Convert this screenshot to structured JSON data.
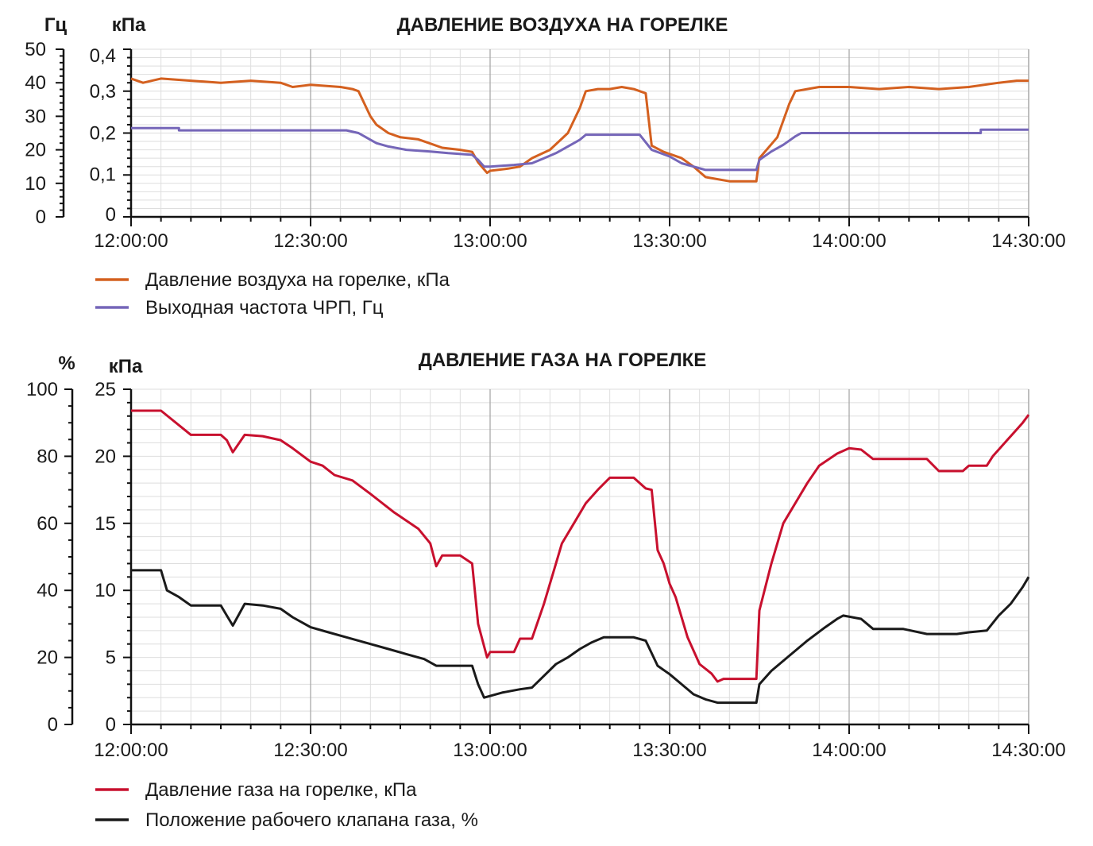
{
  "chart_data": [
    {
      "type": "line",
      "title": "ДАВЛЕНИЕ ВОЗДУХА НА ГОРЕЛКЕ",
      "x_ticks": [
        "12:00:00",
        "12:30:00",
        "13:00:00",
        "13:30:00",
        "14:00:00",
        "14:30:00"
      ],
      "xlim": [
        "12:00:00",
        "14:30:00"
      ],
      "grid": true,
      "legend_position": "bottom-left",
      "axes": [
        {
          "id": "left_outer",
          "unit": "Гц",
          "ylim": [
            0,
            50
          ],
          "ticks": [
            "0",
            "10",
            "20",
            "30",
            "40",
            "50"
          ]
        },
        {
          "id": "left_inner",
          "unit": "кПа",
          "ylim": [
            0,
            0.4
          ],
          "ticks": [
            "0",
            "0,1",
            "0,2",
            "0,3",
            "0,4"
          ]
        }
      ],
      "series": [
        {
          "name": "Давление воздуха на горелке, кПа",
          "axis": "left_inner",
          "color": "#d4601f",
          "points": [
            [
              "12:00:00",
              0.33
            ],
            [
              "12:02:00",
              0.32
            ],
            [
              "12:05:00",
              0.33
            ],
            [
              "12:10:00",
              0.325
            ],
            [
              "12:15:00",
              0.32
            ],
            [
              "12:20:00",
              0.325
            ],
            [
              "12:25:00",
              0.32
            ],
            [
              "12:27:00",
              0.31
            ],
            [
              "12:30:00",
              0.315
            ],
            [
              "12:35:00",
              0.31
            ],
            [
              "12:37:00",
              0.305
            ],
            [
              "12:38:00",
              0.3
            ],
            [
              "12:40:00",
              0.24
            ],
            [
              "12:41:00",
              0.22
            ],
            [
              "12:43:00",
              0.2
            ],
            [
              "12:45:00",
              0.19
            ],
            [
              "12:48:00",
              0.185
            ],
            [
              "12:50:00",
              0.175
            ],
            [
              "12:52:00",
              0.165
            ],
            [
              "12:55:00",
              0.16
            ],
            [
              "12:57:00",
              0.155
            ],
            [
              "12:58:00",
              0.13
            ],
            [
              "12:59:30",
              0.105
            ],
            [
              "13:00:00",
              0.11
            ],
            [
              "13:03:00",
              0.115
            ],
            [
              "13:05:00",
              0.12
            ],
            [
              "13:07:00",
              0.14
            ],
            [
              "13:10:00",
              0.16
            ],
            [
              "13:13:00",
              0.2
            ],
            [
              "13:15:00",
              0.26
            ],
            [
              "13:16:00",
              0.3
            ],
            [
              "13:18:00",
              0.305
            ],
            [
              "13:20:00",
              0.305
            ],
            [
              "13:22:00",
              0.31
            ],
            [
              "13:24:00",
              0.305
            ],
            [
              "13:26:00",
              0.295
            ],
            [
              "13:27:00",
              0.17
            ],
            [
              "13:29:00",
              0.155
            ],
            [
              "13:32:00",
              0.14
            ],
            [
              "13:34:00",
              0.12
            ],
            [
              "13:36:00",
              0.095
            ],
            [
              "13:40:00",
              0.085
            ],
            [
              "13:44:30",
              0.085
            ],
            [
              "13:45:00",
              0.14
            ],
            [
              "13:48:00",
              0.19
            ],
            [
              "13:50:00",
              0.27
            ],
            [
              "13:51:00",
              0.3
            ],
            [
              "13:53:00",
              0.305
            ],
            [
              "13:55:00",
              0.31
            ],
            [
              "14:00:00",
              0.31
            ],
            [
              "14:05:00",
              0.305
            ],
            [
              "14:10:00",
              0.31
            ],
            [
              "14:15:00",
              0.305
            ],
            [
              "14:20:00",
              0.31
            ],
            [
              "14:25:00",
              0.32
            ],
            [
              "14:28:00",
              0.325
            ],
            [
              "14:30:00",
              0.325
            ]
          ]
        },
        {
          "name": "Выходная частота ЧРП, Гц",
          "axis": "left_outer",
          "color": "#7566b8",
          "points": [
            [
              "12:00:00",
              26.5
            ],
            [
              "12:08:00",
              26.5
            ],
            [
              "12:08:00",
              25.8
            ],
            [
              "12:30:00",
              25.8
            ],
            [
              "12:36:00",
              25.8
            ],
            [
              "12:38:00",
              25.0
            ],
            [
              "12:39:00",
              24.0
            ],
            [
              "12:40:00",
              23.0
            ],
            [
              "12:41:00",
              22.0
            ],
            [
              "12:43:00",
              21.0
            ],
            [
              "12:46:00",
              20.0
            ],
            [
              "12:50:00",
              19.5
            ],
            [
              "12:53:00",
              19.0
            ],
            [
              "12:57:00",
              18.5
            ],
            [
              "12:58:00",
              17.0
            ],
            [
              "12:59:00",
              15.0
            ],
            [
              "13:00:00",
              15.0
            ],
            [
              "13:04:00",
              15.5
            ],
            [
              "13:07:00",
              16.0
            ],
            [
              "13:09:00",
              17.5
            ],
            [
              "13:11:00",
              19.0
            ],
            [
              "13:13:00",
              21.0
            ],
            [
              "13:15:00",
              23.0
            ],
            [
              "13:16:00",
              24.5
            ],
            [
              "13:25:00",
              24.5
            ],
            [
              "13:27:00",
              20.0
            ],
            [
              "13:30:00",
              18.0
            ],
            [
              "13:32:00",
              16.0
            ],
            [
              "13:36:00",
              14.0
            ],
            [
              "13:44:30",
              14.0
            ],
            [
              "13:45:00",
              17.0
            ],
            [
              "13:47:00",
              19.5
            ],
            [
              "13:49:00",
              21.5
            ],
            [
              "13:51:00",
              24.0
            ],
            [
              "13:52:00",
              25.0
            ],
            [
              "14:00:00",
              25.0
            ],
            [
              "14:22:00",
              25.0
            ],
            [
              "14:22:00",
              26.0
            ],
            [
              "14:30:00",
              26.0
            ]
          ]
        }
      ]
    },
    {
      "type": "line",
      "title": "ДАВЛЕНИЕ ГАЗА НА ГОРЕЛКЕ",
      "x_ticks": [
        "12:00:00",
        "12:30:00",
        "13:00:00",
        "13:30:00",
        "14:00:00",
        "14:30:00"
      ],
      "xlim": [
        "12:00:00",
        "14:30:00"
      ],
      "grid": true,
      "legend_position": "bottom-left",
      "axes": [
        {
          "id": "left_outer",
          "unit": "%",
          "ylim": [
            0,
            100
          ],
          "ticks": [
            "0",
            "20",
            "40",
            "60",
            "80",
            "100"
          ]
        },
        {
          "id": "left_inner",
          "unit": "кПа",
          "ylim": [
            0,
            25
          ],
          "ticks": [
            "0",
            "5",
            "10",
            "15",
            "20",
            "25"
          ]
        }
      ],
      "series": [
        {
          "name": "Давление газа на горелке, кПа",
          "axis": "left_inner",
          "color": "#c8102e",
          "points": [
            [
              "12:00:00",
              23.4
            ],
            [
              "12:05:00",
              23.4
            ],
            [
              "12:10:00",
              21.6
            ],
            [
              "12:15:00",
              21.6
            ],
            [
              "12:16:00",
              21.2
            ],
            [
              "12:17:00",
              20.3
            ],
            [
              "12:19:00",
              21.6
            ],
            [
              "12:22:00",
              21.5
            ],
            [
              "12:25:00",
              21.2
            ],
            [
              "12:27:00",
              20.6
            ],
            [
              "12:30:00",
              19.6
            ],
            [
              "12:32:00",
              19.3
            ],
            [
              "12:34:00",
              18.6
            ],
            [
              "12:37:00",
              18.2
            ],
            [
              "12:40:00",
              17.2
            ],
            [
              "12:42:00",
              16.5
            ],
            [
              "12:44:00",
              15.8
            ],
            [
              "12:46:00",
              15.2
            ],
            [
              "12:48:00",
              14.6
            ],
            [
              "12:50:00",
              13.5
            ],
            [
              "12:51:00",
              11.8
            ],
            [
              "12:52:00",
              12.6
            ],
            [
              "12:55:00",
              12.6
            ],
            [
              "12:57:00",
              12.0
            ],
            [
              "12:58:00",
              7.5
            ],
            [
              "12:59:30",
              5.0
            ],
            [
              "13:00:00",
              5.4
            ],
            [
              "13:04:00",
              5.4
            ],
            [
              "13:05:00",
              6.4
            ],
            [
              "13:07:00",
              6.4
            ],
            [
              "13:09:00",
              9.0
            ],
            [
              "13:11:00",
              12.0
            ],
            [
              "13:12:00",
              13.5
            ],
            [
              "13:14:00",
              15.0
            ],
            [
              "13:16:00",
              16.5
            ],
            [
              "13:18:00",
              17.5
            ],
            [
              "13:20:00",
              18.4
            ],
            [
              "13:24:00",
              18.4
            ],
            [
              "13:26:00",
              17.6
            ],
            [
              "13:27:00",
              17.5
            ],
            [
              "13:28:00",
              13.0
            ],
            [
              "13:29:00",
              12.0
            ],
            [
              "13:30:00",
              10.5
            ],
            [
              "13:31:00",
              9.5
            ],
            [
              "13:33:00",
              6.5
            ],
            [
              "13:35:00",
              4.5
            ],
            [
              "13:37:00",
              3.8
            ],
            [
              "13:38:00",
              3.2
            ],
            [
              "13:39:00",
              3.4
            ],
            [
              "13:44:30",
              3.4
            ],
            [
              "13:45:00",
              8.5
            ],
            [
              "13:47:00",
              12.0
            ],
            [
              "13:49:00",
              15.0
            ],
            [
              "13:51:00",
              16.5
            ],
            [
              "13:53:00",
              18.0
            ],
            [
              "13:55:00",
              19.3
            ],
            [
              "13:58:00",
              20.2
            ],
            [
              "14:00:00",
              20.6
            ],
            [
              "14:02:00",
              20.5
            ],
            [
              "14:04:00",
              19.8
            ],
            [
              "14:09:00",
              19.8
            ],
            [
              "14:13:00",
              19.8
            ],
            [
              "14:15:00",
              18.9
            ],
            [
              "14:19:00",
              18.9
            ],
            [
              "14:20:00",
              19.3
            ],
            [
              "14:23:00",
              19.3
            ],
            [
              "14:24:00",
              20.0
            ],
            [
              "14:27:00",
              21.5
            ],
            [
              "14:29:00",
              22.5
            ],
            [
              "14:30:00",
              23.1
            ]
          ]
        },
        {
          "name": "Положение рабочего клапана газа, %",
          "axis": "left_outer",
          "color": "#1a1a1a",
          "points": [
            [
              "12:00:00",
              46.0
            ],
            [
              "12:05:00",
              46.0
            ],
            [
              "12:06:00",
              40.0
            ],
            [
              "12:08:00",
              38.0
            ],
            [
              "12:10:00",
              35.5
            ],
            [
              "12:15:00",
              35.5
            ],
            [
              "12:16:00",
              32.5
            ],
            [
              "12:17:00",
              29.5
            ],
            [
              "12:19:00",
              36.0
            ],
            [
              "12:22:00",
              35.5
            ],
            [
              "12:25:00",
              34.5
            ],
            [
              "12:27:00",
              32.0
            ],
            [
              "12:30:00",
              29.0
            ],
            [
              "12:33:00",
              27.5
            ],
            [
              "12:36:00",
              26.0
            ],
            [
              "12:40:00",
              24.0
            ],
            [
              "12:43:00",
              22.5
            ],
            [
              "12:46:00",
              21.0
            ],
            [
              "12:49:00",
              19.5
            ],
            [
              "12:51:00",
              17.5
            ],
            [
              "12:53:00",
              17.5
            ],
            [
              "12:57:00",
              17.5
            ],
            [
              "12:58:00",
              12.0
            ],
            [
              "12:59:00",
              8.0
            ],
            [
              "13:02:00",
              9.5
            ],
            [
              "13:05:00",
              10.5
            ],
            [
              "13:07:00",
              11.0
            ],
            [
              "13:09:00",
              14.5
            ],
            [
              "13:11:00",
              18.0
            ],
            [
              "13:13:00",
              20.0
            ],
            [
              "13:15:00",
              22.5
            ],
            [
              "13:17:00",
              24.5
            ],
            [
              "13:19:00",
              26.0
            ],
            [
              "13:24:00",
              26.0
            ],
            [
              "13:26:00",
              25.0
            ],
            [
              "13:28:00",
              17.5
            ],
            [
              "13:30:00",
              15.0
            ],
            [
              "13:32:00",
              12.0
            ],
            [
              "13:34:00",
              9.0
            ],
            [
              "13:36:00",
              7.5
            ],
            [
              "13:38:00",
              6.5
            ],
            [
              "13:44:30",
              6.5
            ],
            [
              "13:45:00",
              12.0
            ],
            [
              "13:47:00",
              16.0
            ],
            [
              "13:50:00",
              20.5
            ],
            [
              "13:53:00",
              25.0
            ],
            [
              "13:56:00",
              29.0
            ],
            [
              "13:58:00",
              31.5
            ],
            [
              "13:59:00",
              32.5
            ],
            [
              "14:02:00",
              31.5
            ],
            [
              "14:04:00",
              28.5
            ],
            [
              "14:09:00",
              28.5
            ],
            [
              "14:13:00",
              27.0
            ],
            [
              "14:18:00",
              27.0
            ],
            [
              "14:20:00",
              27.5
            ],
            [
              "14:23:00",
              28.0
            ],
            [
              "14:25:00",
              32.5
            ],
            [
              "14:27:00",
              36.0
            ],
            [
              "14:29:00",
              41.0
            ],
            [
              "14:30:00",
              44.0
            ]
          ]
        }
      ]
    }
  ]
}
